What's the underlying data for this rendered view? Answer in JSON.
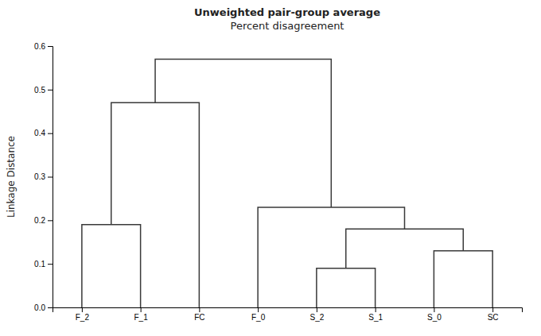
{
  "chart_data": {
    "type": "dendrogram",
    "title": [
      "Unweighted pair-group average",
      "Percent disagreement"
    ],
    "y_label": "Linkage Distance",
    "categories": [
      "F_2",
      "F_1",
      "FC",
      "F_0",
      "S_2",
      "S_1",
      "S_0",
      "SC"
    ],
    "merges": [
      {
        "left": [
          "F_2"
        ],
        "right": [
          "F_1"
        ],
        "value": 0.19
      },
      {
        "left": [
          "F_2",
          "F_1"
        ],
        "right": [
          "FC"
        ],
        "value": 0.47
      },
      {
        "left": [
          "S_2"
        ],
        "right": [
          "S_1"
        ],
        "value": 0.09
      },
      {
        "left": [
          "S_0"
        ],
        "right": [
          "SC"
        ],
        "value": 0.13
      },
      {
        "left": [
          "S_2",
          "S_1"
        ],
        "right": [
          "S_0",
          "SC"
        ],
        "value": 0.18
      },
      {
        "left": [
          "F_0"
        ],
        "right": [
          "S_2",
          "S_1",
          "S_0",
          "SC"
        ],
        "value": 0.23
      },
      {
        "left": [
          "F_2",
          "F_1",
          "FC"
        ],
        "right": [
          "F_0",
          "S_2",
          "S_1",
          "S_0",
          "SC"
        ],
        "value": 0.57
      }
    ],
    "color": "#3a3a3a",
    "ylim": [
      0,
      0.6
    ],
    "yticks": [
      {
        "value": 0,
        "label": "0.0"
      },
      0.1,
      0.2,
      0.3,
      0.4,
      0.5,
      0.6
    ],
    "grid": false
  }
}
